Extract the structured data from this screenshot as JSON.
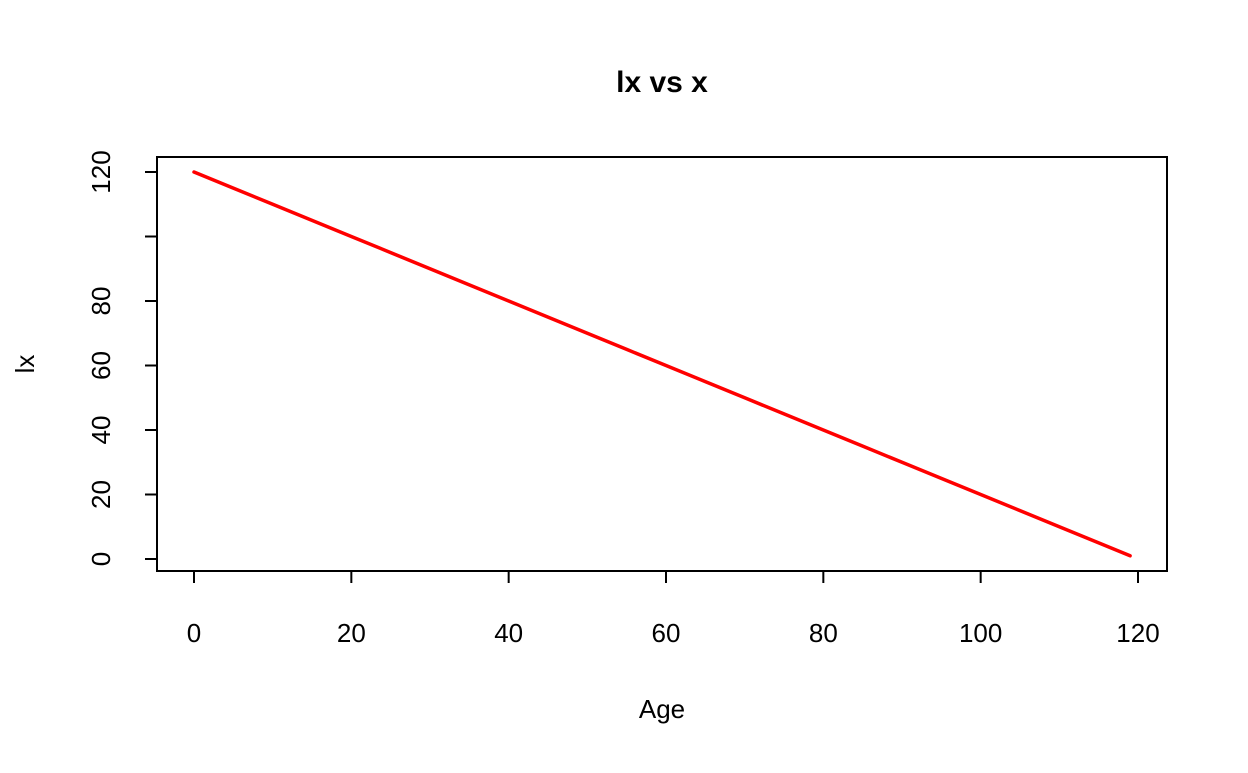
{
  "chart_data": {
    "type": "line",
    "title": "lx vs x",
    "xlabel": "Age",
    "ylabel": "lx",
    "xlim": [
      0,
      119
    ],
    "ylim": [
      1,
      120
    ],
    "x_ticks": [
      0,
      20,
      40,
      60,
      80,
      100,
      120
    ],
    "x_tick_labels": [
      "0",
      "20",
      "40",
      "60",
      "80",
      "100",
      "120"
    ],
    "y_ticks": [
      0,
      20,
      40,
      60,
      80,
      100,
      120
    ],
    "y_tick_labels": [
      "0",
      "20",
      "40",
      "60",
      "80",
      "",
      "120"
    ],
    "grid": false,
    "legend": "none",
    "series": [
      {
        "color": "#ff0000",
        "x": [
          0,
          5,
          10,
          15,
          20,
          25,
          30,
          35,
          40,
          45,
          50,
          55,
          60,
          65,
          70,
          75,
          80,
          85,
          90,
          95,
          100,
          105,
          110,
          115,
          119
        ],
        "y": [
          120,
          115,
          110,
          105,
          100,
          95,
          90,
          85,
          80,
          75,
          70,
          65,
          60,
          55,
          50,
          45,
          40,
          35,
          30,
          25,
          20,
          15,
          10,
          5,
          1
        ]
      }
    ]
  }
}
